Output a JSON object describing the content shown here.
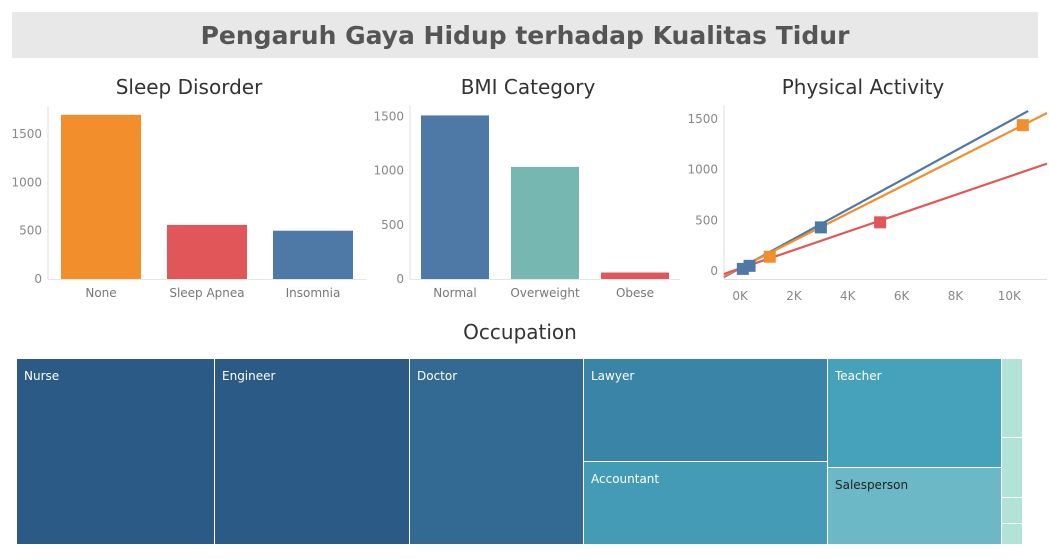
{
  "dashboard": {
    "title": "Pengaruh Gaya Hidup terhadap Kualitas Tidur"
  },
  "chart_data": [
    {
      "type": "bar",
      "title": "Sleep Disorder",
      "categories": [
        "None",
        "Sleep Apnea",
        "Insomnia"
      ],
      "values": [
        1700,
        560,
        500
      ],
      "colors": [
        "#f28e2b",
        "#e15759",
        "#4e79a7"
      ],
      "yticks": [
        0,
        500,
        1000,
        1500
      ],
      "ylim": [
        0,
        1750
      ],
      "grid": false
    },
    {
      "type": "bar",
      "title": "BMI Category",
      "categories": [
        "Normal",
        "Overweight",
        "Obese"
      ],
      "values": [
        1510,
        1035,
        60
      ],
      "colors": [
        "#4e79a7",
        "#76b7b2",
        "#e15759"
      ],
      "yticks": [
        0,
        500,
        1000,
        1500
      ],
      "ylim": [
        0,
        1560
      ],
      "grid": false
    },
    {
      "type": "scatter",
      "title": "Physical Activity",
      "xticks": [
        "0K",
        "2K",
        "4K",
        "6K",
        "8K",
        "10K"
      ],
      "xtick_values": [
        0,
        2000,
        4000,
        6000,
        8000,
        10000
      ],
      "yticks": [
        0,
        500,
        1000,
        1500
      ],
      "xlim": [
        -600,
        11400
      ],
      "ylim": [
        -80,
        1590
      ],
      "grid": false,
      "series": [
        {
          "color": "#4e79a7",
          "points": [
            [
              100,
              20
            ],
            [
              350,
              50
            ],
            [
              3000,
              430
            ]
          ],
          "trend": [
            [
              -600,
              -60
            ],
            [
              10700,
              1580
            ]
          ]
        },
        {
          "color": "#f28e2b",
          "points": [
            [
              1100,
              140
            ],
            [
              10500,
              1440
            ]
          ],
          "trend": [
            [
              -600,
              -50
            ],
            [
              11400,
              1560
            ]
          ]
        },
        {
          "color": "#e15759",
          "points": [
            [
              5200,
              480
            ]
          ],
          "trend": [
            [
              -600,
              -30
            ],
            [
              11400,
              1060
            ]
          ]
        }
      ]
    },
    {
      "type": "treemap",
      "title": "Occupation",
      "items": [
        {
          "label": "Nurse",
          "color": "#2b5a86"
        },
        {
          "label": "Engineer",
          "color": "#2b5a86"
        },
        {
          "label": "Doctor",
          "color": "#326a93"
        },
        {
          "label": "Lawyer",
          "color": "#3a84a7"
        },
        {
          "label": "Accountant",
          "color": "#439bb5"
        },
        {
          "label": "Teacher",
          "color": "#45a2ba"
        },
        {
          "label": "Salesperson",
          "color": "#6cb8c7"
        },
        {
          "label": "",
          "color": "#b3e2d7"
        },
        {
          "label": "",
          "color": "#b3e2d7"
        },
        {
          "label": "",
          "color": "#b3e2d7"
        },
        {
          "label": "",
          "color": "#b3e2d7"
        }
      ]
    }
  ]
}
